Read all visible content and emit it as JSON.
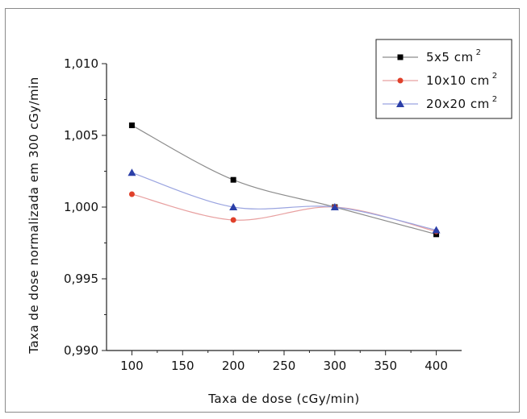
{
  "chart_data": {
    "type": "line",
    "xlabel": "Taxa de dose (cGy/min)",
    "ylabel": "Taxa de dose normalizada em 300 cGy/min",
    "xlim": [
      75,
      425
    ],
    "ylim": [
      0.99,
      1.01
    ],
    "x_ticks": [
      "100",
      "150",
      "200",
      "250",
      "300",
      "350",
      "400"
    ],
    "y_ticks": [
      "0,990",
      "0,995",
      "1,000",
      "1,005",
      "1,010"
    ],
    "x": [
      100,
      200,
      300,
      400
    ],
    "legend_position": "top-right",
    "series": [
      {
        "name": "5x5 cm",
        "superscript": "2",
        "marker": "square",
        "color": "#000000",
        "line_color": "#8c8c8c",
        "values": [
          1.0057,
          1.0019,
          1.0,
          0.9981
        ]
      },
      {
        "name": "10x10 cm",
        "superscript": "2",
        "marker": "circle",
        "color": "#e0402a",
        "line_color": "#e8a0a0",
        "values": [
          1.0009,
          0.9991,
          1.0,
          0.9983
        ]
      },
      {
        "name": "20x20 cm",
        "superscript": "2",
        "marker": "triangle",
        "color": "#2b3fa8",
        "line_color": "#9aa4e0",
        "values": [
          1.0024,
          1.0,
          1.0,
          0.9984
        ]
      }
    ]
  }
}
